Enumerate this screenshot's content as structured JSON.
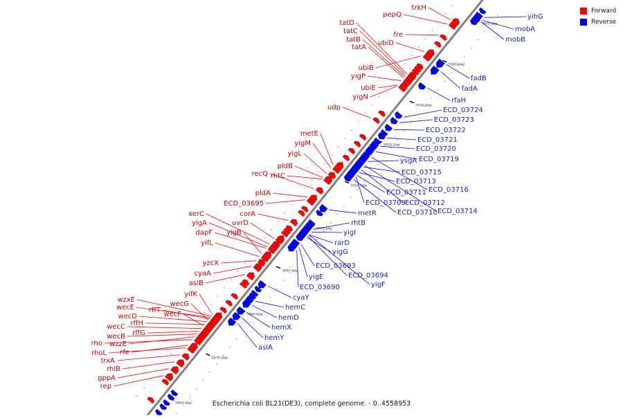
{
  "caption": "Escherichia coli BL21(DE3), complete genome. - 0..4558953",
  "legend": [
    {
      "label": "Forward",
      "color": "#ff0000"
    },
    {
      "label": "Reverse",
      "color": "#0000ff"
    }
  ],
  "colors": {
    "forward": "#ff0000",
    "reverse": "#0000ff",
    "axis": "#808080",
    "forward_label": "#cc0000",
    "reverse_label": "#1a1acc"
  },
  "ticks": [
    "3860 kbp",
    "3870 kbp",
    "3880 kbp",
    "3890 kbp",
    "3900 kbp",
    "3910 kbp",
    "3920 kbp",
    "3930 kbp",
    "3940 kbp",
    "3950 kbp"
  ],
  "forward_genes": [
    "trkH",
    "pepQ",
    "fre",
    "tatD",
    "tatC",
    "tatB",
    "tatA",
    "ubiD",
    "ubiB",
    "yigP",
    "ubiE",
    "yigN",
    "udp",
    "metE",
    "yigM",
    "yigL",
    "pldB",
    "rhtC",
    "recQ",
    "pldA",
    "ECD_03695",
    "corA",
    "xerC",
    "yigA",
    "uvrD",
    "dapF",
    "yigB",
    "yifL",
    "yzcX",
    "cyaA",
    "aslB",
    "yifK",
    "wzxE",
    "wecE",
    "rffT",
    "wecG",
    "wecD",
    "rffH",
    "wecF",
    "wecC",
    "rffG",
    "wecB",
    "wzzE",
    "rho",
    "rfe",
    "rhoL",
    "trxA",
    "rhlB",
    "gppA",
    "rep"
  ],
  "reverse_genes": [
    "yihG",
    "mobA",
    "mobB",
    "fadB",
    "fadA",
    "rfaH",
    "ECD_03724",
    "ECD_03723",
    "ECD_03722",
    "ECD_03721",
    "ECD_03720",
    "ECD_03719",
    "ysgA",
    "ECD_03715",
    "ECD_03713",
    "ECD_03716",
    "ECD_03711",
    "ECD_03709",
    "ECD_03712",
    "ECD_03710",
    "ECD_03714",
    "metR",
    "rhtB",
    "yigI",
    "rarD",
    "yigG",
    "ECD_03693",
    "ECD_03694",
    "yigE",
    "yigF",
    "ECD_03690",
    "cyaY",
    "hemC",
    "hemD",
    "hemX",
    "hemY",
    "aslA"
  ]
}
